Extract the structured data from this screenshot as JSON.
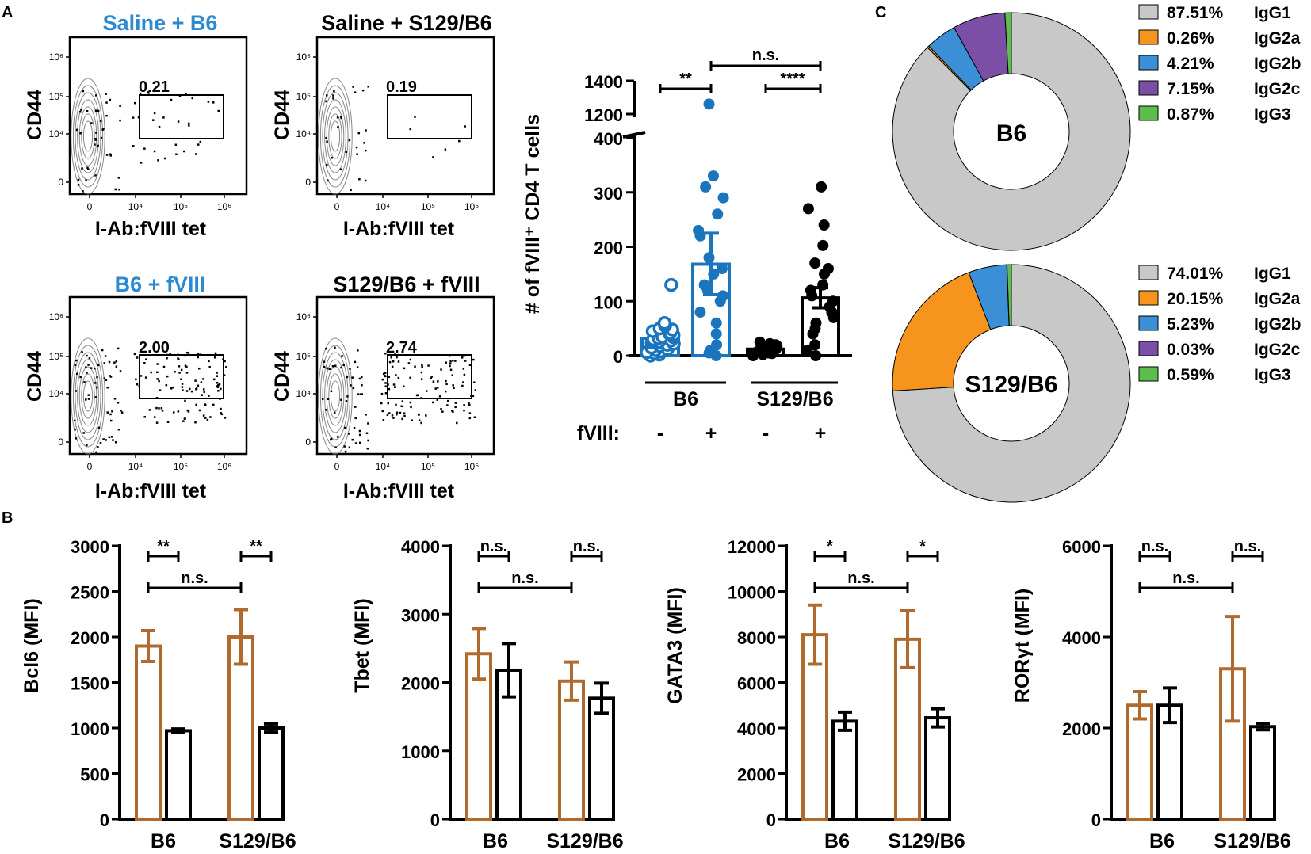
{
  "panel_labels": {
    "a": "A",
    "b": "B",
    "c": "C"
  },
  "colors": {
    "blue": "#1b75bc",
    "light_blue": "#2b8ad0",
    "brown": "#b06a2e",
    "black": "#000000",
    "gray": "#c8c8c8"
  },
  "flow_plots": [
    {
      "title": "Saline + B6",
      "title_color": "#2b8ad0",
      "gate_value": "0.21"
    },
    {
      "title": "Saline + S129/B6",
      "title_color": "#000000",
      "gate_value": "0.19"
    },
    {
      "title": "B6 + fVIII",
      "title_color": "#2b8ad0",
      "gate_value": "2.00"
    },
    {
      "title": "S129/B6 + fVIII",
      "title_color": "#000000",
      "gate_value": "2.74"
    }
  ],
  "flow_axes": {
    "ylabel": "CD44",
    "xlabel": "I-Ab:fVIII tet",
    "yticks": [
      "10⁶",
      "10⁵",
      "10⁴",
      "0"
    ],
    "xticks": [
      "0",
      "10⁴",
      "10⁵",
      "10⁶"
    ]
  },
  "chart_data": [
    {
      "type": "bar",
      "title": "",
      "ylabel": "# of fVIII⁺ CD4 T cells",
      "categories": [
        "B6 -",
        "B6 +",
        "S129/B6 -",
        "S129/B6 +"
      ],
      "group_labels": [
        "B6",
        "S129/B6"
      ],
      "row_label": "fVIII:",
      "fviii_signs": [
        "-",
        "+",
        "-",
        "+"
      ],
      "values": [
        32,
        168,
        12,
        106
      ],
      "error_upper": [
        42,
        225,
        17,
        125
      ],
      "error_lower": [
        22,
        112,
        7,
        88
      ],
      "yticks_lower": [
        0,
        100,
        200,
        300,
        400
      ],
      "yticks_upper": [
        1200,
        1400
      ],
      "ylim": [
        0,
        1400
      ],
      "points": [
        [
          0,
          2,
          4,
          6,
          8,
          10,
          12,
          15,
          18,
          20,
          22,
          24,
          25,
          27,
          28,
          30,
          32,
          34,
          35,
          38,
          40,
          42,
          45,
          48,
          50,
          55,
          60,
          130
        ],
        [
          0,
          5,
          10,
          20,
          40,
          60,
          80,
          100,
          110,
          120,
          130,
          150,
          160,
          180,
          220,
          230,
          260,
          290,
          310,
          330,
          1260
        ],
        [
          0,
          2,
          3,
          4,
          5,
          6,
          7,
          8,
          9,
          10,
          12,
          14,
          15,
          16,
          18,
          20,
          22,
          25
        ],
        [
          0,
          10,
          20,
          40,
          50,
          60,
          70,
          80,
          90,
          100,
          110,
          120,
          130,
          150,
          160,
          170,
          240,
          270,
          310,
          410
        ]
      ],
      "significance": [
        {
          "label": "**"
        },
        {
          "label": "n.s."
        },
        {
          "label": "****"
        }
      ]
    },
    {
      "type": "bar",
      "ylabel": "Bcl6 (MFI)",
      "categories": [
        "B6",
        "S129/B6"
      ],
      "series": [
        {
          "name": "brown",
          "values": [
            1900,
            2000
          ],
          "err": [
            170,
            300
          ]
        },
        {
          "name": "black",
          "values": [
            970,
            1000
          ],
          "err": [
            20,
            45
          ]
        }
      ],
      "yticks": [
        0,
        500,
        1000,
        1500,
        2000,
        2500,
        3000
      ],
      "ylim": [
        0,
        3000
      ],
      "significance": [
        "**",
        "**",
        "n.s."
      ]
    },
    {
      "type": "bar",
      "ylabel": "Tbet (MFI)",
      "categories": [
        "B6",
        "S129/B6"
      ],
      "series": [
        {
          "name": "brown",
          "values": [
            2420,
            2020
          ],
          "err": [
            370,
            280
          ]
        },
        {
          "name": "black",
          "values": [
            2180,
            1770
          ],
          "err": [
            390,
            220
          ]
        }
      ],
      "yticks": [
        0,
        1000,
        2000,
        3000,
        4000
      ],
      "ylim": [
        0,
        4000
      ],
      "significance": [
        "n.s.",
        "n.s.",
        "n.s."
      ]
    },
    {
      "type": "bar",
      "ylabel": "GATA3 (MFI)",
      "categories": [
        "B6",
        "S129/B6"
      ],
      "series": [
        {
          "name": "brown",
          "values": [
            8100,
            7900
          ],
          "err": [
            1300,
            1250
          ]
        },
        {
          "name": "black",
          "values": [
            4300,
            4450
          ],
          "err": [
            400,
            400
          ]
        }
      ],
      "yticks": [
        0,
        2000,
        4000,
        6000,
        8000,
        10000,
        12000
      ],
      "ylim": [
        0,
        12000
      ],
      "significance": [
        "*",
        "*",
        "n.s."
      ]
    },
    {
      "type": "bar",
      "ylabel": "RORγt (MFI)",
      "categories": [
        "B6",
        "S129/B6"
      ],
      "series": [
        {
          "name": "brown",
          "values": [
            2500,
            3300
          ],
          "err": [
            300,
            1150
          ]
        },
        {
          "name": "black",
          "values": [
            2500,
            2030
          ],
          "err": [
            380,
            70
          ]
        }
      ],
      "yticks": [
        0,
        2000,
        4000,
        6000
      ],
      "ylim": [
        0,
        6000
      ],
      "significance": [
        "n.s.",
        "n.s.",
        "n.s."
      ]
    },
    {
      "type": "pie",
      "center_label": "B6",
      "slices": [
        {
          "label": "IgG1",
          "pct": "87.51%",
          "value": 87.51,
          "color": "#c8c8c8"
        },
        {
          "label": "IgG2a",
          "pct": "0.26%",
          "value": 0.26,
          "color": "#f7941d"
        },
        {
          "label": "IgG2b",
          "pct": "4.21%",
          "value": 4.21,
          "color": "#3a8fd6"
        },
        {
          "label": "IgG2c",
          "pct": "7.15%",
          "value": 7.15,
          "color": "#7b4fa6"
        },
        {
          "label": "IgG3",
          "pct": "0.87%",
          "value": 0.87,
          "color": "#5cbf4c"
        }
      ]
    },
    {
      "type": "pie",
      "center_label": "S129/B6",
      "slices": [
        {
          "label": "IgG1",
          "pct": "74.01%",
          "value": 74.01,
          "color": "#c8c8c8"
        },
        {
          "label": "IgG2a",
          "pct": "20.15%",
          "value": 20.15,
          "color": "#f7941d"
        },
        {
          "label": "IgG2b",
          "pct": "5.23%",
          "value": 5.23,
          "color": "#3a8fd6"
        },
        {
          "label": "IgG2c",
          "pct": "0.03%",
          "value": 0.03,
          "color": "#7b4fa6"
        },
        {
          "label": "IgG3",
          "pct": "0.59%",
          "value": 0.59,
          "color": "#5cbf4c"
        }
      ]
    }
  ]
}
